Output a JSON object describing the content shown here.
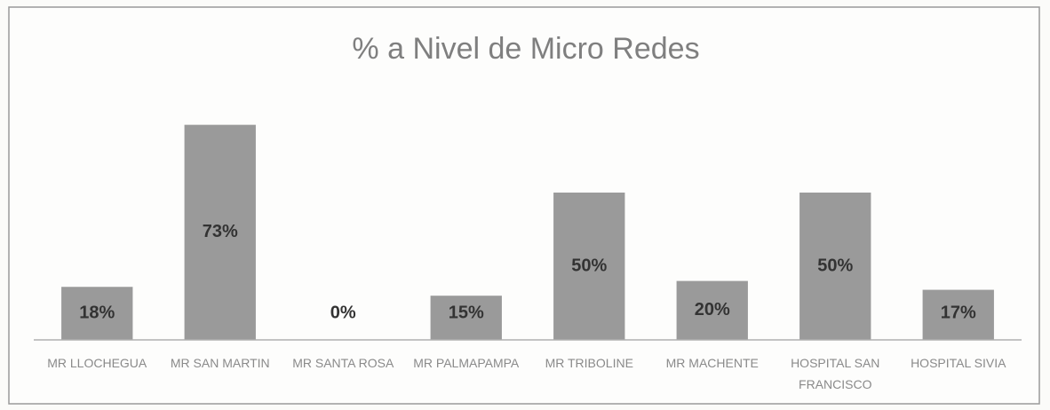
{
  "chart_data": {
    "type": "bar",
    "title": "% a Nivel de Micro Redes",
    "categories": [
      "MR LLOCHEGUA",
      "MR SAN MARTIN",
      "MR SANTA ROSA",
      "MR PALMAPAMPA",
      "MR TRIBOLINE",
      "MR MACHENTE",
      "HOSPITAL SAN FRANCISCO",
      "HOSPITAL SIVIA"
    ],
    "values": [
      18,
      73,
      0,
      15,
      50,
      20,
      50,
      17
    ],
    "value_labels": [
      "18%",
      "73%",
      "0%",
      "15%",
      "50%",
      "20%",
      "50%",
      "17%"
    ],
    "color": "#9a9a9a",
    "ylim": [
      0,
      75
    ]
  }
}
